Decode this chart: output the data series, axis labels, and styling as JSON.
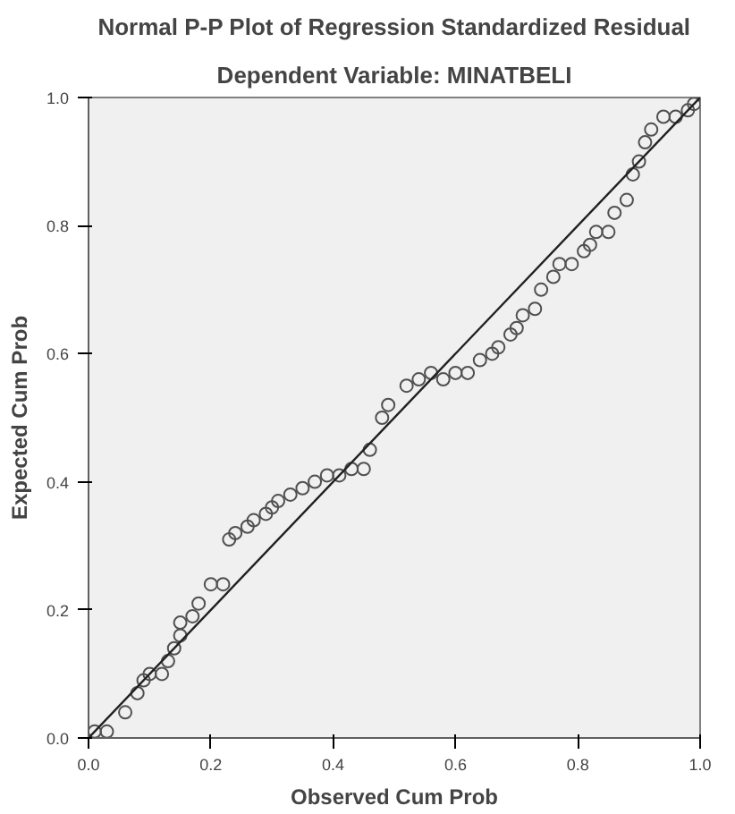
{
  "chart_data": {
    "type": "scatter",
    "title": "Normal P-P Plot of Regression Standardized Residual",
    "subtitle": "Dependent Variable: MINATBELI",
    "xlabel": "Observed Cum Prob",
    "ylabel": "Expected Cum Prob",
    "grid": false,
    "xlim": [
      0,
      1
    ],
    "ylim": [
      0,
      1
    ],
    "xticks": [
      {
        "value": 0,
        "label": "0.0"
      },
      {
        "value": 0.2,
        "label": "0.2"
      },
      {
        "value": 0.4,
        "label": "0.4"
      },
      {
        "value": 0.6,
        "label": "0.6"
      },
      {
        "value": 0.8,
        "label": "0.8"
      },
      {
        "value": 1,
        "label": "1.0"
      }
    ],
    "yticks": [
      {
        "value": 0,
        "label": "0.0"
      },
      {
        "value": 0.2,
        "label": "0.2"
      },
      {
        "value": 0.4,
        "label": "0.4"
      },
      {
        "value": 0.6,
        "label": "0.6"
      },
      {
        "value": 0.8,
        "label": "0.8"
      },
      {
        "value": 1,
        "label": "1.0"
      }
    ],
    "series": [
      {
        "marker": "circle",
        "color": "#505050",
        "x": [
          0.01,
          0.03,
          0.06,
          0.08,
          0.09,
          0.1,
          0.12,
          0.13,
          0.14,
          0.15,
          0.15,
          0.17,
          0.18,
          0.2,
          0.22,
          0.23,
          0.24,
          0.26,
          0.27,
          0.29,
          0.3,
          0.31,
          0.33,
          0.35,
          0.37,
          0.39,
          0.41,
          0.43,
          0.45,
          0.46,
          0.48,
          0.49,
          0.52,
          0.54,
          0.56,
          0.58,
          0.6,
          0.62,
          0.64,
          0.66,
          0.67,
          0.69,
          0.7,
          0.71,
          0.73,
          0.74,
          0.76,
          0.77,
          0.79,
          0.81,
          0.82,
          0.83,
          0.85,
          0.86,
          0.88,
          0.89,
          0.9,
          0.91,
          0.92,
          0.94,
          0.96,
          0.98,
          0.99
        ],
        "values": [
          0.01,
          0.01,
          0.04,
          0.07,
          0.09,
          0.1,
          0.1,
          0.12,
          0.14,
          0.16,
          0.18,
          0.19,
          0.21,
          0.24,
          0.24,
          0.31,
          0.32,
          0.33,
          0.34,
          0.35,
          0.36,
          0.37,
          0.38,
          0.39,
          0.4,
          0.41,
          0.41,
          0.42,
          0.42,
          0.45,
          0.5,
          0.52,
          0.55,
          0.56,
          0.57,
          0.56,
          0.57,
          0.57,
          0.59,
          0.6,
          0.61,
          0.63,
          0.64,
          0.66,
          0.67,
          0.7,
          0.72,
          0.74,
          0.74,
          0.76,
          0.77,
          0.79,
          0.79,
          0.82,
          0.84,
          0.88,
          0.9,
          0.93,
          0.95,
          0.97,
          0.97,
          0.98,
          0.99
        ]
      },
      {
        "type": "line",
        "marker": "none",
        "color": "#202020",
        "x": [
          0,
          1
        ],
        "values": [
          0,
          1
        ]
      }
    ]
  }
}
